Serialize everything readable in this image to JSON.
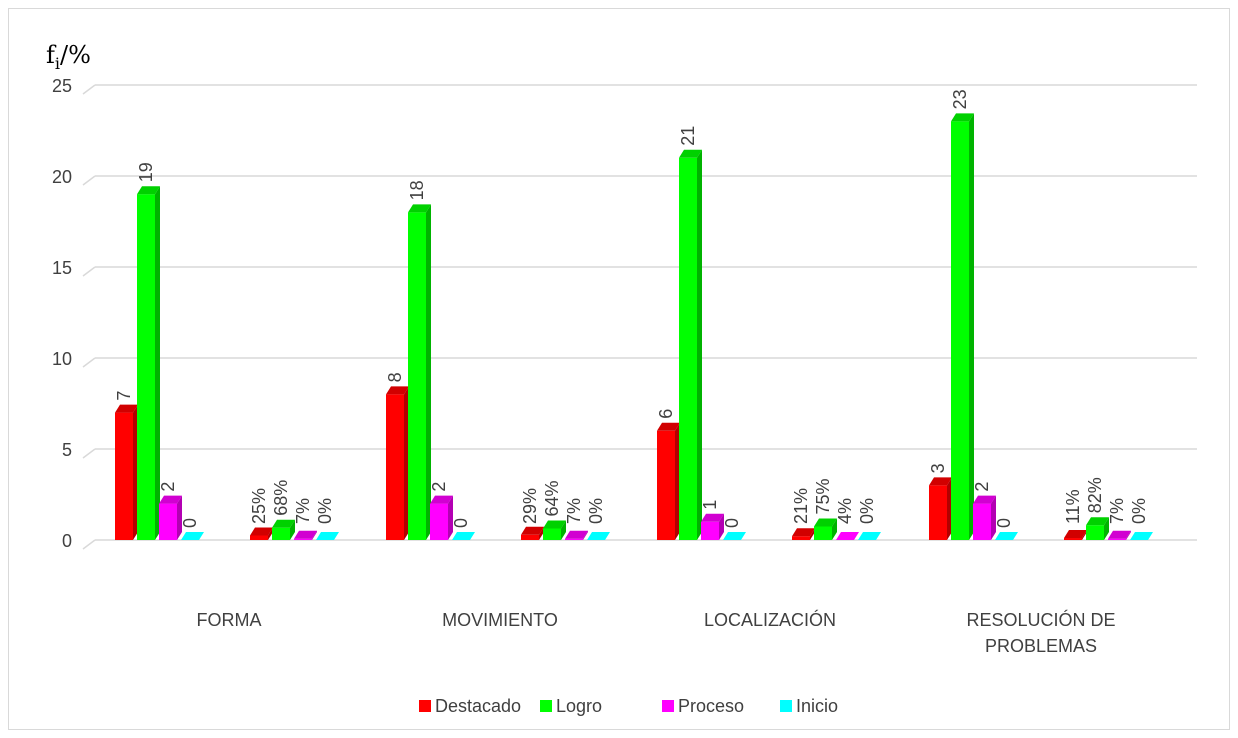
{
  "chart_data": {
    "type": "bar",
    "y_axis_title": {
      "base": "f",
      "subscript": "i",
      "suffix": "/%"
    },
    "ylim": [
      0,
      25
    ],
    "y_ticks": [
      "0",
      "5",
      "10",
      "15",
      "20",
      "25"
    ],
    "categories": [
      "FORMA",
      "MOVIMIENTO",
      "LOCALIZACIÓN",
      "RESOLUCIÓN DE PROBLEMAS"
    ],
    "category_lines": [
      [
        "FORMA"
      ],
      [
        "MOVIMIENTO"
      ],
      [
        "LOCALIZACIÓN"
      ],
      [
        "RESOLUCIÓN DE",
        "PROBLEMAS"
      ]
    ],
    "grid": true,
    "legend_position": "bottom",
    "series": [
      {
        "name": "Destacado",
        "color": "#ff0000",
        "counts": [
          7,
          8,
          6,
          3
        ],
        "percent_labels": [
          "25%",
          "29%",
          "21%",
          "11%"
        ],
        "percents": [
          25,
          29,
          21,
          11
        ]
      },
      {
        "name": "Logro",
        "color": "#00ff00",
        "counts": [
          19,
          18,
          21,
          23
        ],
        "percent_labels": [
          "68%",
          "64%",
          "75%",
          "82%"
        ],
        "percents": [
          68,
          64,
          75,
          82
        ]
      },
      {
        "name": "Proceso",
        "color": "#ff00ff",
        "counts": [
          2,
          2,
          1,
          2
        ],
        "percent_labels": [
          "7%",
          "7%",
          "4%",
          "7%"
        ],
        "percents": [
          7,
          7,
          4,
          7
        ]
      },
      {
        "name": "Inicio",
        "color": "#00ffff",
        "counts": [
          0,
          0,
          0,
          0
        ],
        "percent_labels": [
          "0%",
          "0%",
          "0%",
          "0%"
        ],
        "percents": [
          0,
          0,
          0,
          0
        ]
      }
    ]
  }
}
